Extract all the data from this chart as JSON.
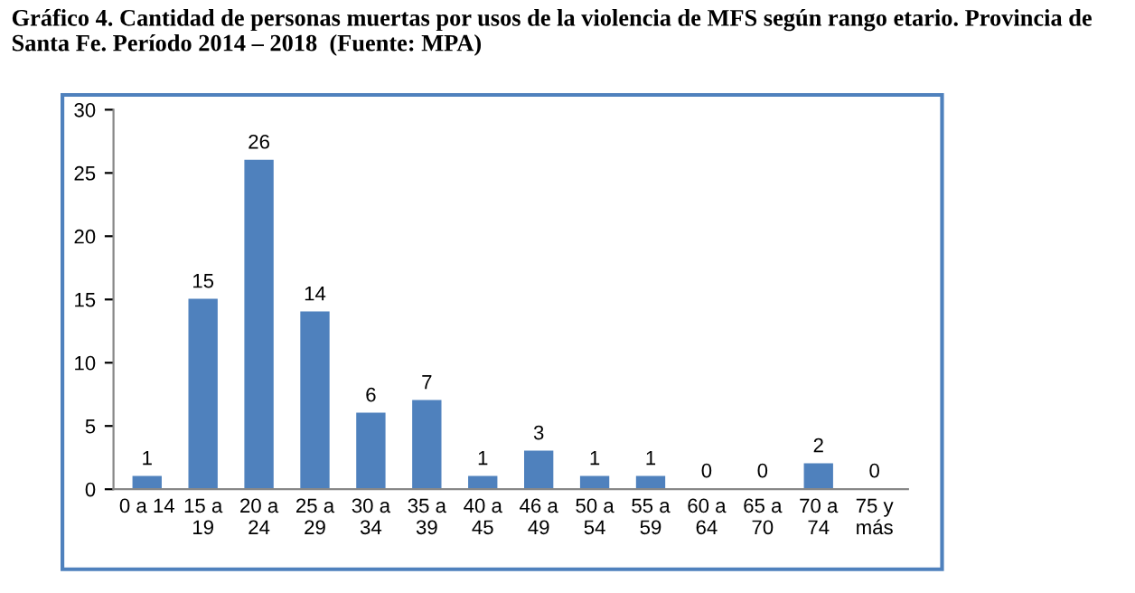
{
  "chart_data": {
    "type": "bar",
    "title": "Gráfico 4. Cantidad de personas muertas por usos de la violencia de MFS según rango etario. Provincia de Santa Fe. Período 2014 – 2018  (Fuente: MPA)",
    "categories": [
      "0 a 14",
      "15 a\n19",
      "20 a\n24",
      "25 a\n29",
      "30 a\n34",
      "35 a\n39",
      "40 a\n45",
      "46 a\n49",
      "50 a\n54",
      "55 a\n59",
      "60 a\n64",
      "65 a\n70",
      "70 a\n74",
      "75 y\nmás"
    ],
    "values": [
      1,
      15,
      26,
      14,
      6,
      7,
      1,
      3,
      1,
      1,
      0,
      0,
      2,
      0
    ],
    "color": "#4f81bd",
    "ylim": [
      0,
      30
    ],
    "yticks": [
      0,
      5,
      10,
      15,
      20,
      25,
      30
    ],
    "grid": false,
    "data_labels": true
  }
}
